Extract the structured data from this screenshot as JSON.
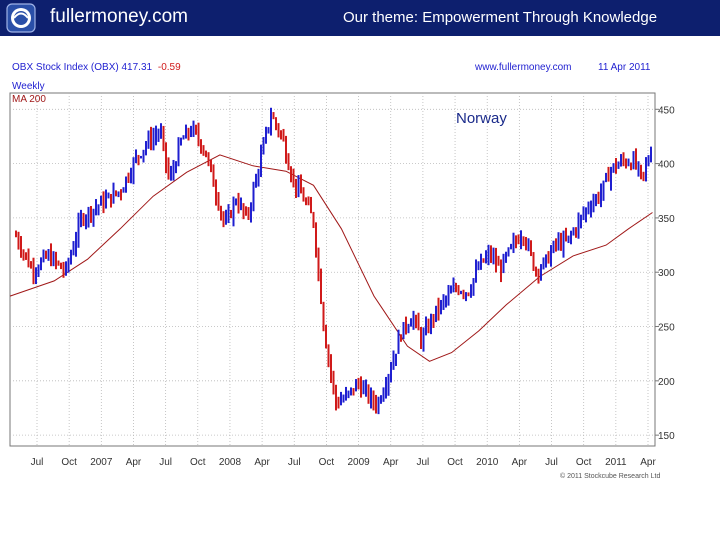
{
  "banner": {
    "site_title": "fullermoney.com",
    "theme": "Our theme: Empowerment Through Knowledge"
  },
  "colors": {
    "banner_bg": "#0d1f6e",
    "up_bar": "#1f1fd0",
    "down_bar": "#d01a1a",
    "moving_average": "#a01818",
    "grid": "#b8b8b8",
    "frame": "#777777"
  },
  "chart_header": {
    "ticker": "OBX Stock Index (OBX) 417.31",
    "change": "-0.59",
    "website": "www.fullermoney.com",
    "date": "11 Apr 2011",
    "period": "Weekly",
    "ma_label": "MA 200",
    "country": "Norway",
    "copyright": "© 2011 Stockcube Research Ltd"
  },
  "chart_data": {
    "type": "candlestick",
    "title": "OBX Stock Index (OBX) 417.31 -0.59",
    "annotation": "Norway",
    "ylim": [
      140,
      465
    ],
    "yticks": [
      150,
      200,
      250,
      300,
      350,
      400,
      450
    ],
    "x_tick_labels": [
      "Jul",
      "Oct",
      "2007",
      "Apr",
      "Jul",
      "Oct",
      "2008",
      "Apr",
      "Jul",
      "Oct",
      "2009",
      "Apr",
      "Jul",
      "Oct",
      "2010",
      "Apr",
      "Jul",
      "Oct",
      "2011",
      "Apr"
    ],
    "x_start": "2006-06-01",
    "x_end": "2011-04-15",
    "grid": true,
    "series": [
      {
        "name": "OBX Stock Index",
        "points": [
          [
            "2006-06-01",
            345
          ],
          [
            "2006-08-01",
            302
          ],
          [
            "2006-09-15",
            315
          ],
          [
            "2006-11-01",
            300
          ],
          [
            "2006-12-15",
            350
          ],
          [
            "2007-02-01",
            362
          ],
          [
            "2007-04-01",
            375
          ],
          [
            "2007-05-15",
            405
          ],
          [
            "2007-06-15",
            420
          ],
          [
            "2007-07-20",
            430
          ],
          [
            "2007-08-15",
            383
          ],
          [
            "2007-09-15",
            420
          ],
          [
            "2007-10-15",
            432
          ],
          [
            "2007-11-20",
            413
          ],
          [
            "2008-01-15",
            342
          ],
          [
            "2008-02-15",
            368
          ],
          [
            "2008-03-15",
            348
          ],
          [
            "2008-04-15",
            394
          ],
          [
            "2008-05-20",
            445
          ],
          [
            "2008-06-20",
            425
          ],
          [
            "2008-07-20",
            385
          ],
          [
            "2008-08-20",
            367
          ],
          [
            "2008-09-15",
            347
          ],
          [
            "2008-10-15",
            245
          ],
          [
            "2008-11-15",
            180
          ],
          [
            "2008-12-15",
            185
          ],
          [
            "2009-01-15",
            198
          ],
          [
            "2009-02-20",
            183
          ],
          [
            "2009-03-10",
            178
          ],
          [
            "2009-04-15",
            212
          ],
          [
            "2009-05-15",
            245
          ],
          [
            "2009-06-15",
            260
          ],
          [
            "2009-07-10",
            237
          ],
          [
            "2009-08-15",
            262
          ],
          [
            "2009-09-15",
            275
          ],
          [
            "2009-10-15",
            286
          ],
          [
            "2009-11-15",
            282
          ],
          [
            "2009-12-15",
            305
          ],
          [
            "2010-01-15",
            317
          ],
          [
            "2010-02-10",
            302
          ],
          [
            "2010-03-15",
            322
          ],
          [
            "2010-04-15",
            338
          ],
          [
            "2010-05-20",
            302
          ],
          [
            "2010-06-15",
            308
          ],
          [
            "2010-07-15",
            326
          ],
          [
            "2010-08-15",
            328
          ],
          [
            "2010-09-15",
            345
          ],
          [
            "2010-10-15",
            362
          ],
          [
            "2010-11-15",
            372
          ],
          [
            "2010-12-15",
            395
          ],
          [
            "2011-01-15",
            402
          ],
          [
            "2011-02-15",
            402
          ],
          [
            "2011-03-10",
            385
          ],
          [
            "2011-04-08",
            417
          ]
        ]
      },
      {
        "name": "MA 200",
        "points": [
          [
            "2006-06-01",
            278
          ],
          [
            "2006-10-01",
            292
          ],
          [
            "2007-01-01",
            312
          ],
          [
            "2007-04-01",
            340
          ],
          [
            "2007-07-01",
            370
          ],
          [
            "2007-10-01",
            392
          ],
          [
            "2008-01-01",
            408
          ],
          [
            "2008-04-01",
            398
          ],
          [
            "2008-07-01",
            393
          ],
          [
            "2008-09-15",
            380
          ],
          [
            "2008-12-01",
            340
          ],
          [
            "2009-03-01",
            278
          ],
          [
            "2009-06-01",
            232
          ],
          [
            "2009-08-01",
            218
          ],
          [
            "2009-10-01",
            226
          ],
          [
            "2009-12-15",
            246
          ],
          [
            "2010-03-01",
            270
          ],
          [
            "2010-06-01",
            296
          ],
          [
            "2010-09-01",
            315
          ],
          [
            "2010-12-01",
            325
          ],
          [
            "2011-02-01",
            340
          ],
          [
            "2011-04-08",
            355
          ]
        ]
      }
    ]
  }
}
